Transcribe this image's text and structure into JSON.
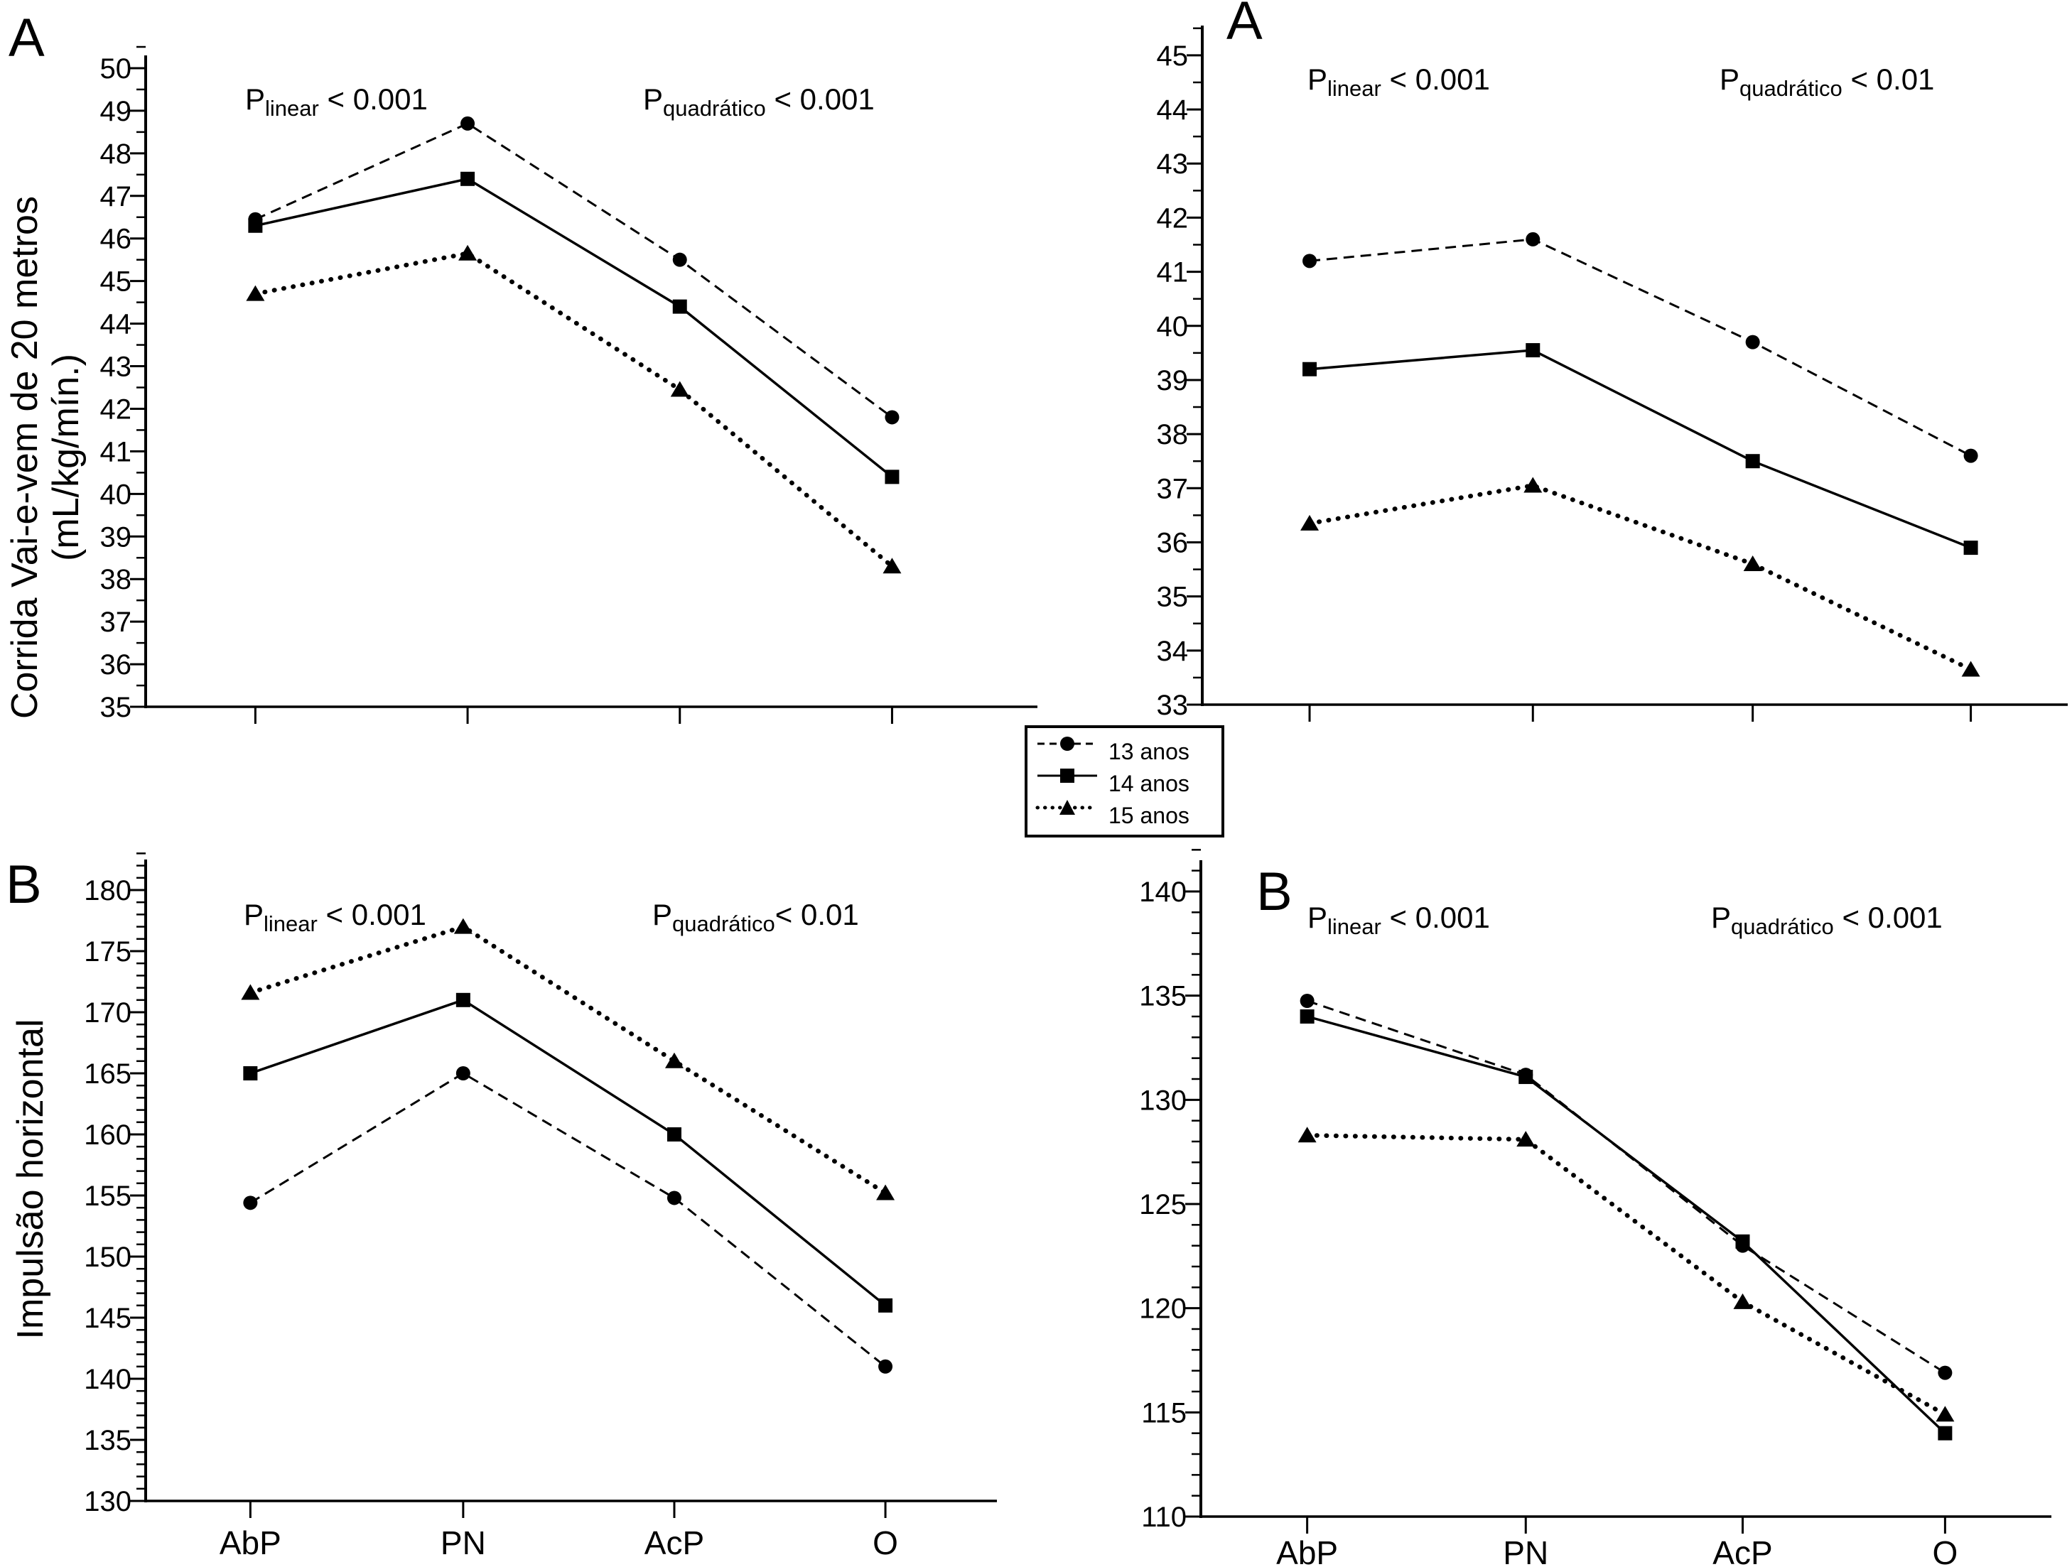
{
  "colors": {
    "foreground": "#000000",
    "background": "#ffffff"
  },
  "legend": {
    "items": [
      {
        "label": "13 anos",
        "marker": "circle",
        "line_style": "dashed"
      },
      {
        "label": "14 anos",
        "marker": "square",
        "line_style": "solid"
      },
      {
        "label": "15 anos",
        "marker": "triangle",
        "line_style": "dotted"
      }
    ]
  },
  "chart_data": [
    {
      "id": "top-left",
      "type": "line",
      "panel_label": "A",
      "ylabel_lines": [
        "Corrida Vai-e-vem de 20 metros",
        "(mL/kg/mín.)"
      ],
      "ylim": [
        35,
        50
      ],
      "ytick_step": 1,
      "yminor_step": 0.5,
      "categories": [
        "AbP",
        "PN",
        "AcP",
        "O"
      ],
      "show_x_labels": false,
      "grid": false,
      "legend_position": "shared-center",
      "annotations": [
        {
          "prefix": "P",
          "sub": "linear",
          "text": " < 0.001"
        },
        {
          "prefix": "P",
          "sub": "quadrático",
          "text": " < 0.001"
        }
      ],
      "series": [
        {
          "name": "13 anos",
          "marker": "circle",
          "line_style": "dashed",
          "values": [
            46.45,
            48.7,
            45.5,
            41.8
          ]
        },
        {
          "name": "14 anos",
          "marker": "square",
          "line_style": "solid",
          "values": [
            46.3,
            47.4,
            44.4,
            40.4
          ]
        },
        {
          "name": "15 anos",
          "marker": "triangle",
          "line_style": "dotted",
          "values": [
            44.7,
            45.65,
            42.45,
            38.3
          ]
        }
      ]
    },
    {
      "id": "top-right",
      "type": "line",
      "panel_label": "A",
      "ylabel_lines": [],
      "ylim": [
        33,
        45
      ],
      "ytick_step": 1,
      "yminor_step": 0.5,
      "categories": [
        "AbP",
        "PN",
        "AcP",
        "O"
      ],
      "show_x_labels": false,
      "grid": false,
      "legend_position": "shared-center",
      "annotations": [
        {
          "prefix": "P",
          "sub": "linear",
          "text": " < 0.001"
        },
        {
          "prefix": "P",
          "sub": "quadrático",
          "text": " < 0.01"
        }
      ],
      "series": [
        {
          "name": "13 anos",
          "marker": "circle",
          "line_style": "dashed",
          "values": [
            41.2,
            41.6,
            39.7,
            37.6
          ]
        },
        {
          "name": "14 anos",
          "marker": "square",
          "line_style": "solid",
          "values": [
            39.2,
            39.55,
            37.5,
            35.9
          ]
        },
        {
          "name": "15 anos",
          "marker": "triangle",
          "line_style": "dotted",
          "values": [
            36.35,
            37.05,
            35.6,
            33.65
          ]
        }
      ]
    },
    {
      "id": "bottom-left",
      "type": "line",
      "panel_label": "B",
      "ylabel_lines": [
        "Impulsão horizontal"
      ],
      "ylim": [
        130,
        180
      ],
      "ytick_step": 5,
      "yminor_step": 1,
      "categories": [
        "AbP",
        "PN",
        "AcP",
        "O"
      ],
      "show_x_labels": true,
      "grid": false,
      "legend_position": "shared-center",
      "annotations": [
        {
          "prefix": "P",
          "sub": "linear",
          "text": " < 0.001"
        },
        {
          "prefix": "P",
          "sub": "quadrático",
          "text": "< 0.01"
        }
      ],
      "series": [
        {
          "name": "13 anos",
          "marker": "circle",
          "line_style": "dashed",
          "values": [
            154.4,
            165.0,
            154.8,
            141.0
          ]
        },
        {
          "name": "14 anos",
          "marker": "square",
          "line_style": "solid",
          "values": [
            165.0,
            171.0,
            160.0,
            146.0
          ]
        },
        {
          "name": "15 anos",
          "marker": "triangle",
          "line_style": "dotted",
          "values": [
            171.6,
            177.0,
            166.0,
            155.2
          ]
        }
      ]
    },
    {
      "id": "bottom-right",
      "type": "line",
      "panel_label": "B",
      "ylabel_lines": [],
      "ylim": [
        110,
        140
      ],
      "ytick_step": 5,
      "yminor_step": 1,
      "categories": [
        "AbP",
        "PN",
        "AcP",
        "O"
      ],
      "show_x_labels": true,
      "grid": false,
      "legend_position": "shared-center",
      "annotations": [
        {
          "prefix": "P",
          "sub": "linear",
          "text": " < 0.001"
        },
        {
          "prefix": "P",
          "sub": "quadrático",
          "text": " < 0.001"
        }
      ],
      "series": [
        {
          "name": "13 anos",
          "marker": "circle",
          "line_style": "dashed",
          "values": [
            134.75,
            131.2,
            123.0,
            116.9
          ]
        },
        {
          "name": "14 anos",
          "marker": "square",
          "line_style": "solid",
          "values": [
            134.0,
            131.1,
            123.2,
            114.0
          ]
        },
        {
          "name": "15 anos",
          "marker": "triangle",
          "line_style": "dotted",
          "values": [
            128.3,
            128.1,
            120.3,
            114.9
          ]
        }
      ]
    }
  ]
}
